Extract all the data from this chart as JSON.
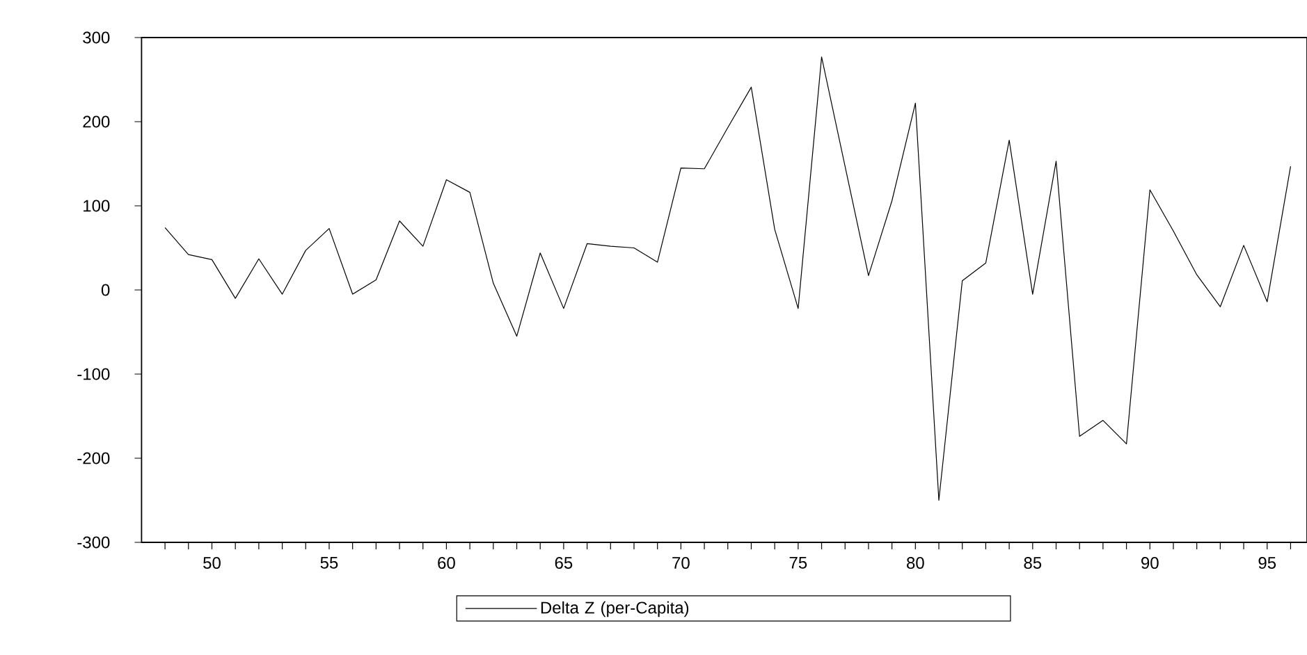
{
  "chart_data": {
    "type": "line",
    "x": [
      48,
      49,
      50,
      51,
      52,
      53,
      54,
      55,
      56,
      57,
      58,
      59,
      60,
      61,
      62,
      63,
      64,
      65,
      66,
      67,
      68,
      69,
      70,
      71,
      72,
      73,
      74,
      75,
      76,
      77,
      78,
      79,
      80,
      81,
      82,
      83,
      84,
      85,
      86,
      87,
      88,
      89,
      90,
      91,
      92,
      93,
      94,
      95,
      96
    ],
    "series": [
      {
        "name": "Delta Z (per-Capita)",
        "color": "#000000",
        "values": [
          74,
          42,
          36,
          -10,
          37,
          -5,
          47,
          73,
          -5,
          12,
          82,
          52,
          131,
          116,
          8,
          -55,
          44,
          -22,
          55,
          52,
          50,
          33,
          145,
          144,
          193,
          241,
          72,
          -22,
          277,
          147,
          17,
          106,
          222,
          -250,
          11,
          32,
          178,
          -5,
          153,
          -174,
          -155,
          -183,
          119,
          70,
          18,
          -20,
          53,
          -14,
          147
        ]
      }
    ],
    "xlim": [
      47,
      96.7
    ],
    "xticks": [
      {
        "value": 48,
        "label": null
      },
      {
        "value": 49,
        "label": null
      },
      50,
      {
        "value": 51,
        "label": null
      },
      {
        "value": 52,
        "label": null
      },
      {
        "value": 53,
        "label": null
      },
      {
        "value": 54,
        "label": null
      },
      55,
      {
        "value": 56,
        "label": null
      },
      {
        "value": 57,
        "label": null
      },
      {
        "value": 58,
        "label": null
      },
      {
        "value": 59,
        "label": null
      },
      60,
      {
        "value": 61,
        "label": null
      },
      {
        "value": 62,
        "label": null
      },
      {
        "value": 63,
        "label": null
      },
      {
        "value": 64,
        "label": null
      },
      65,
      {
        "value": 66,
        "label": null
      },
      {
        "value": 67,
        "label": null
      },
      {
        "value": 68,
        "label": null
      },
      {
        "value": 69,
        "label": null
      },
      70,
      {
        "value": 71,
        "label": null
      },
      {
        "value": 72,
        "label": null
      },
      {
        "value": 73,
        "label": null
      },
      {
        "value": 74,
        "label": null
      },
      75,
      {
        "value": 76,
        "label": null
      },
      {
        "value": 77,
        "label": null
      },
      {
        "value": 78,
        "label": null
      },
      {
        "value": 79,
        "label": null
      },
      80,
      {
        "value": 81,
        "label": null
      },
      {
        "value": 82,
        "label": null
      },
      {
        "value": 83,
        "label": null
      },
      {
        "value": 84,
        "label": null
      },
      85,
      {
        "value": 86,
        "label": null
      },
      {
        "value": 87,
        "label": null
      },
      {
        "value": 88,
        "label": null
      },
      {
        "value": 89,
        "label": null
      },
      90,
      {
        "value": 91,
        "label": null
      },
      {
        "value": 92,
        "label": null
      },
      {
        "value": 93,
        "label": null
      },
      {
        "value": 94,
        "label": null
      },
      95,
      {
        "value": 96,
        "label": null
      }
    ],
    "ylim": [
      -300,
      300
    ],
    "yticks": [
      -300,
      -200,
      -100,
      0,
      100,
      200,
      300
    ],
    "legend": "bottom",
    "marker": "none",
    "line_style": "solid",
    "grid": false
  }
}
